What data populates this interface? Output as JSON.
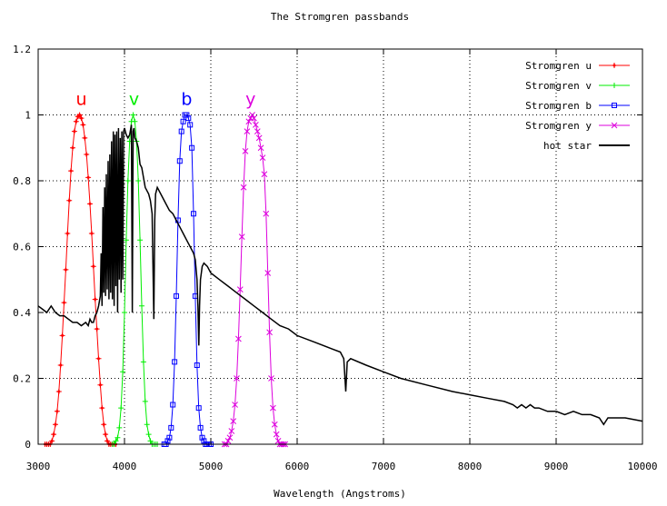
{
  "chart_data": {
    "type": "line",
    "title": "The Stromgren passbands",
    "xlabel": "Wavelength (Angstroms)",
    "ylabel": "",
    "xlim": [
      3000,
      10000
    ],
    "ylim": [
      0,
      1.2
    ],
    "xticks": [
      3000,
      4000,
      5000,
      6000,
      7000,
      8000,
      9000,
      10000
    ],
    "xtick_labels": [
      "3000",
      "4000",
      "5000",
      "6000",
      "7000",
      "8000",
      "9000",
      "10000"
    ],
    "yticks": [
      0,
      0.2,
      0.4,
      0.6,
      0.8,
      1,
      1.2
    ],
    "ytick_labels": [
      "0",
      "0.2",
      "0.4",
      "0.6",
      "0.8",
      "1",
      "1.2"
    ],
    "grid": true,
    "legend_position": "top-right",
    "band_labels": [
      {
        "text": "u",
        "x": 3500,
        "y": 1.03,
        "color": "#ff0000"
      },
      {
        "text": "v",
        "x": 4110,
        "y": 1.03,
        "color": "#00ee00"
      },
      {
        "text": "b",
        "x": 4720,
        "y": 1.03,
        "color": "#0000ff"
      },
      {
        "text": "y",
        "x": 5460,
        "y": 1.03,
        "color": "#dd00dd"
      }
    ],
    "series": [
      {
        "name": "Stromgren u",
        "color": "#ff0000",
        "marker": "plus-dot",
        "x": [
          3080,
          3100,
          3120,
          3140,
          3160,
          3180,
          3200,
          3220,
          3240,
          3260,
          3280,
          3300,
          3320,
          3340,
          3360,
          3380,
          3400,
          3420,
          3440,
          3460,
          3480,
          3500,
          3520,
          3540,
          3560,
          3580,
          3600,
          3620,
          3640,
          3660,
          3680,
          3700,
          3720,
          3740,
          3760,
          3780,
          3800,
          3820,
          3840,
          3860,
          3880,
          3900
        ],
        "y": [
          0.0,
          0.0,
          0.0,
          0.0,
          0.01,
          0.03,
          0.06,
          0.1,
          0.16,
          0.24,
          0.33,
          0.43,
          0.53,
          0.64,
          0.74,
          0.83,
          0.9,
          0.95,
          0.98,
          0.995,
          1.0,
          0.99,
          0.97,
          0.93,
          0.88,
          0.81,
          0.73,
          0.64,
          0.54,
          0.44,
          0.35,
          0.26,
          0.18,
          0.11,
          0.06,
          0.03,
          0.01,
          0.0,
          0.0,
          0.0,
          0.0,
          0.0
        ]
      },
      {
        "name": "Stromgren v",
        "color": "#00ee00",
        "marker": "plus",
        "x": [
          3860,
          3880,
          3900,
          3920,
          3940,
          3960,
          3980,
          4000,
          4020,
          4040,
          4060,
          4080,
          4100,
          4120,
          4140,
          4160,
          4180,
          4200,
          4220,
          4240,
          4260,
          4280,
          4300,
          4320,
          4340,
          4360,
          4380
        ],
        "y": [
          0.0,
          0.0,
          0.01,
          0.02,
          0.05,
          0.11,
          0.22,
          0.4,
          0.62,
          0.8,
          0.92,
          0.98,
          1.0,
          0.98,
          0.92,
          0.8,
          0.62,
          0.42,
          0.25,
          0.13,
          0.06,
          0.03,
          0.01,
          0.0,
          0.0,
          0.0,
          0.0
        ]
      },
      {
        "name": "Stromgren b",
        "color": "#0000ff",
        "marker": "square",
        "x": [
          4460,
          4480,
          4500,
          4520,
          4540,
          4560,
          4580,
          4600,
          4620,
          4640,
          4660,
          4680,
          4700,
          4720,
          4740,
          4760,
          4780,
          4800,
          4820,
          4840,
          4860,
          4880,
          4900,
          4920,
          4940,
          4960,
          4980,
          5000
        ],
        "y": [
          0.0,
          0.0,
          0.01,
          0.02,
          0.05,
          0.12,
          0.25,
          0.45,
          0.68,
          0.86,
          0.95,
          0.98,
          1.0,
          1.0,
          0.99,
          0.97,
          0.9,
          0.7,
          0.45,
          0.24,
          0.11,
          0.05,
          0.02,
          0.01,
          0.0,
          0.0,
          0.0,
          0.0
        ]
      },
      {
        "name": "Stromgren y",
        "color": "#dd00dd",
        "marker": "cross",
        "x": [
          5160,
          5180,
          5200,
          5220,
          5240,
          5260,
          5280,
          5300,
          5320,
          5340,
          5360,
          5380,
          5400,
          5420,
          5440,
          5460,
          5480,
          5500,
          5520,
          5540,
          5560,
          5580,
          5600,
          5620,
          5640,
          5660,
          5680,
          5700,
          5720,
          5740,
          5760,
          5780,
          5800,
          5820,
          5840,
          5860
        ],
        "y": [
          0.0,
          0.0,
          0.01,
          0.02,
          0.04,
          0.07,
          0.12,
          0.2,
          0.32,
          0.47,
          0.63,
          0.78,
          0.89,
          0.95,
          0.98,
          0.99,
          1.0,
          0.99,
          0.97,
          0.95,
          0.93,
          0.9,
          0.87,
          0.82,
          0.7,
          0.52,
          0.34,
          0.2,
          0.11,
          0.06,
          0.03,
          0.01,
          0.0,
          0.0,
          0.0,
          0.0
        ]
      },
      {
        "name": "hot star",
        "color": "#000000",
        "marker": "none",
        "x": [
          3000,
          3050,
          3100,
          3150,
          3200,
          3250,
          3300,
          3350,
          3400,
          3450,
          3500,
          3550,
          3580,
          3600,
          3620,
          3640,
          3660,
          3680,
          3700,
          3720,
          3730,
          3740,
          3750,
          3760,
          3770,
          3780,
          3790,
          3800,
          3810,
          3820,
          3830,
          3840,
          3850,
          3860,
          3870,
          3880,
          3890,
          3900,
          3910,
          3920,
          3930,
          3940,
          3950,
          3960,
          3970,
          3980,
          3990,
          4000,
          4020,
          4040,
          4060,
          4080,
          4090,
          4100,
          4110,
          4120,
          4140,
          4160,
          4180,
          4200,
          4240,
          4280,
          4300,
          4320,
          4340,
          4350,
          4360,
          4380,
          4400,
          4440,
          4480,
          4520,
          4560,
          4600,
          4640,
          4680,
          4720,
          4760,
          4800,
          4820,
          4840,
          4850,
          4861,
          4870,
          4880,
          4900,
          4920,
          4960,
          5000,
          5100,
          5200,
          5300,
          5400,
          5500,
          5600,
          5700,
          5800,
          5900,
          6000,
          6200,
          6400,
          6500,
          6540,
          6563,
          6580,
          6620,
          6800,
          7000,
          7200,
          7500,
          7800,
          8000,
          8200,
          8400,
          8500,
          8550,
          8600,
          8650,
          8700,
          8750,
          8800,
          8900,
          9000,
          9100,
          9200,
          9300,
          9400,
          9500,
          9550,
          9600,
          9700,
          9800,
          10000
        ],
        "y": [
          0.42,
          0.41,
          0.4,
          0.42,
          0.4,
          0.39,
          0.39,
          0.38,
          0.37,
          0.37,
          0.36,
          0.37,
          0.36,
          0.38,
          0.37,
          0.37,
          0.39,
          0.4,
          0.42,
          0.45,
          0.58,
          0.42,
          0.72,
          0.46,
          0.78,
          0.45,
          0.82,
          0.47,
          0.86,
          0.44,
          0.88,
          0.46,
          0.92,
          0.44,
          0.95,
          0.42,
          0.94,
          0.48,
          0.95,
          0.4,
          0.96,
          0.5,
          0.93,
          0.46,
          0.95,
          0.5,
          0.95,
          0.96,
          0.94,
          0.93,
          0.94,
          0.97,
          0.4,
          0.95,
          0.96,
          0.93,
          0.92,
          0.9,
          0.85,
          0.84,
          0.78,
          0.76,
          0.74,
          0.7,
          0.38,
          0.68,
          0.76,
          0.78,
          0.77,
          0.75,
          0.73,
          0.71,
          0.7,
          0.68,
          0.66,
          0.64,
          0.62,
          0.6,
          0.58,
          0.56,
          0.5,
          0.42,
          0.3,
          0.42,
          0.5,
          0.54,
          0.55,
          0.54,
          0.52,
          0.5,
          0.48,
          0.46,
          0.44,
          0.42,
          0.4,
          0.38,
          0.36,
          0.35,
          0.33,
          0.31,
          0.29,
          0.28,
          0.26,
          0.16,
          0.25,
          0.26,
          0.24,
          0.22,
          0.2,
          0.18,
          0.16,
          0.15,
          0.14,
          0.13,
          0.12,
          0.11,
          0.12,
          0.11,
          0.12,
          0.11,
          0.11,
          0.1,
          0.1,
          0.09,
          0.1,
          0.09,
          0.09,
          0.08,
          0.06,
          0.08,
          0.08,
          0.08,
          0.07
        ]
      }
    ]
  }
}
